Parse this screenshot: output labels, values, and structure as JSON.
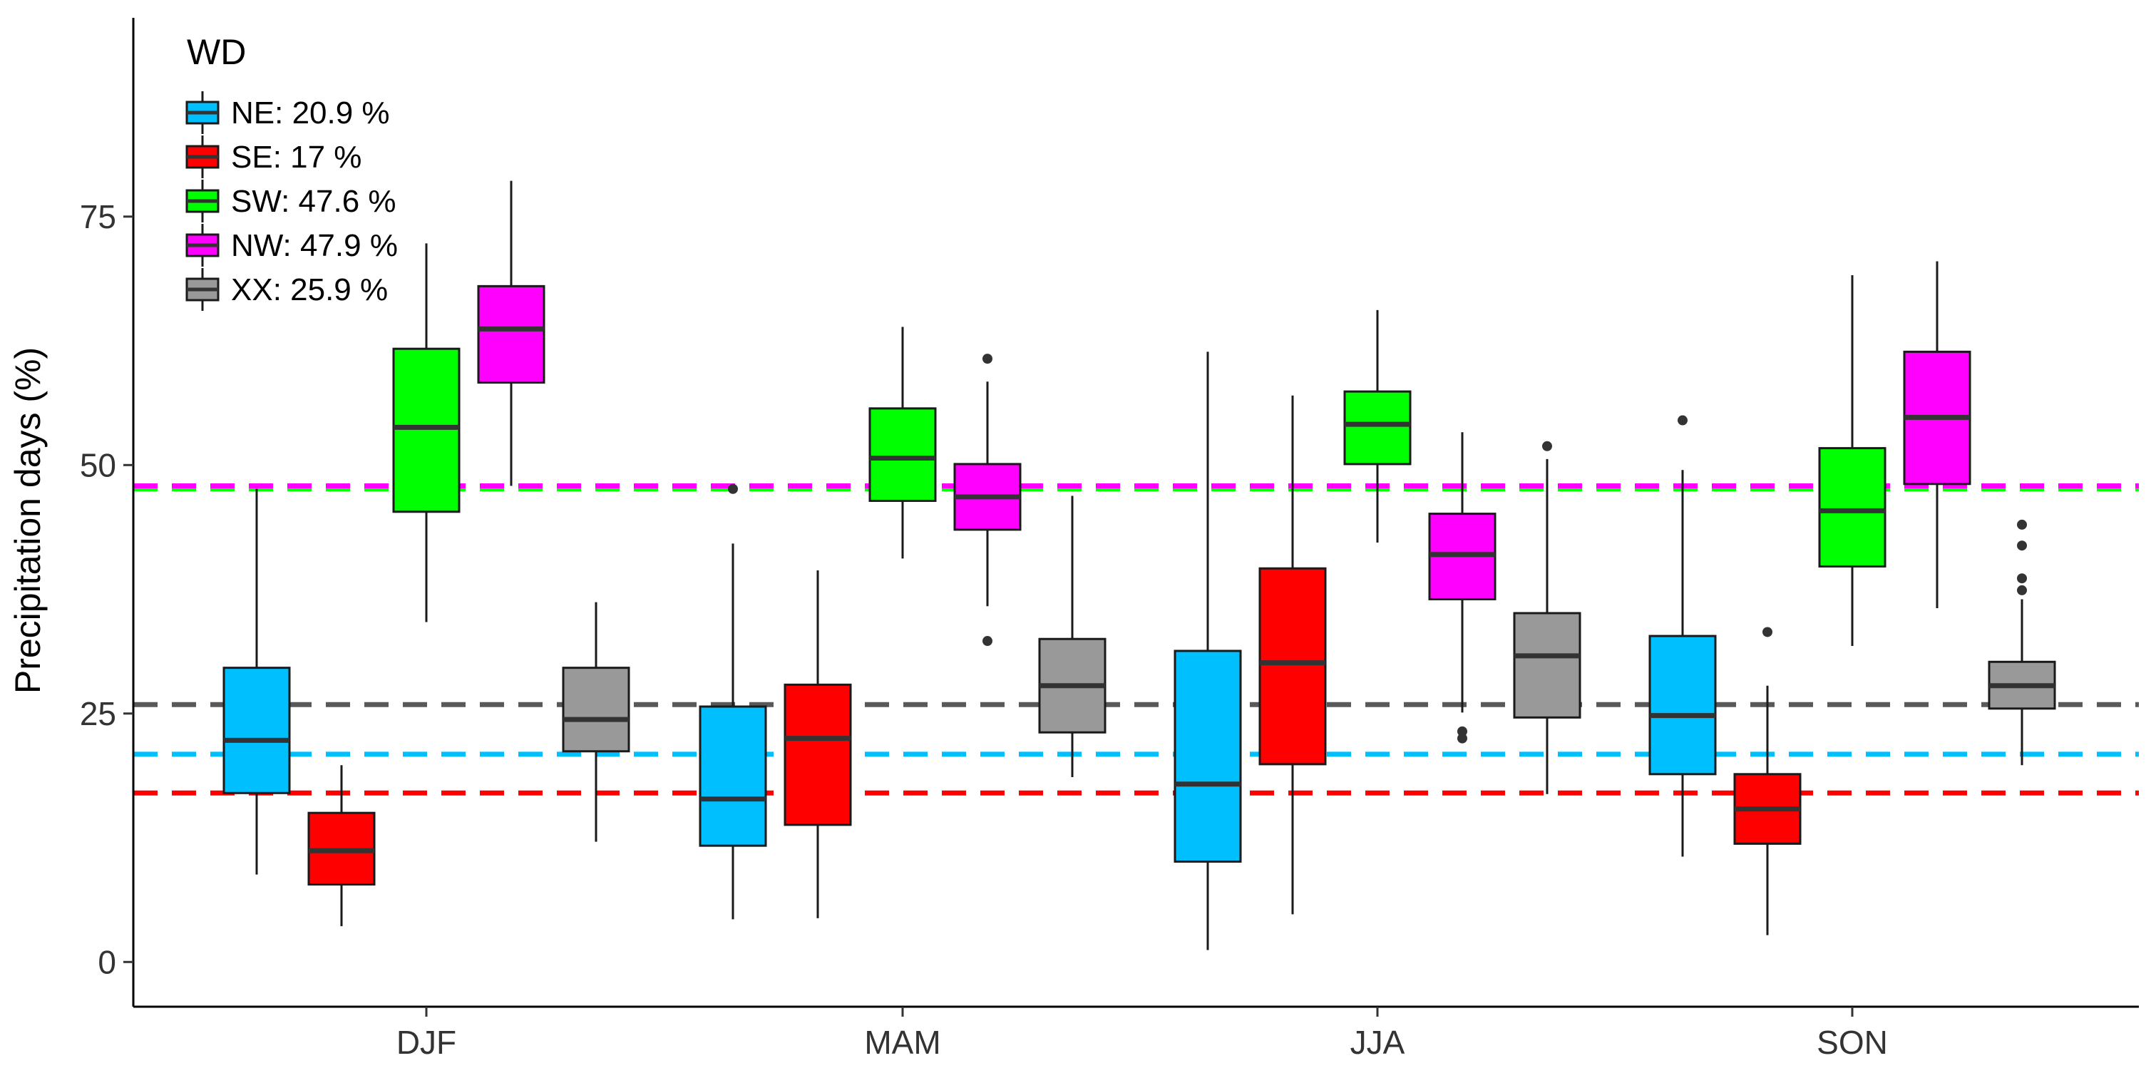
{
  "chart_data": {
    "type": "boxplot",
    "title": "",
    "xlabel": "",
    "ylabel": "Precipitation days (%)",
    "ylim": [
      -4.5,
      95
    ],
    "yticks": [
      0,
      25,
      50,
      75
    ],
    "categories": [
      "DJF",
      "MAM",
      "JJA",
      "SON"
    ],
    "legend": {
      "title": "WD",
      "position": "top-left",
      "entries": [
        "NE: 20.9 %",
        "SE: 17 %",
        "SW: 47.6 %",
        "NW: 47.9 %",
        "XX: 25.9 %"
      ]
    },
    "series": [
      {
        "name": "NE",
        "color": "#00BFFF",
        "reference_mean": 20.9,
        "boxes": [
          {
            "category": "DJF",
            "whisker_low": 8.8,
            "q1": 17.0,
            "median": 22.3,
            "q3": 29.6,
            "whisker_high": 47.6,
            "outliers": []
          },
          {
            "category": "MAM",
            "whisker_low": 4.3,
            "q1": 11.7,
            "median": 16.4,
            "q3": 25.7,
            "whisker_high": 42.1,
            "outliers": [
              47.6
            ]
          },
          {
            "category": "JJA",
            "whisker_low": 1.2,
            "q1": 10.1,
            "median": 17.9,
            "q3": 31.3,
            "whisker_high": 61.4,
            "outliers": []
          },
          {
            "category": "SON",
            "whisker_low": 10.6,
            "q1": 18.9,
            "median": 24.8,
            "q3": 32.8,
            "whisker_high": 49.5,
            "outliers": [
              54.5
            ]
          }
        ]
      },
      {
        "name": "SE",
        "color": "#FF0000",
        "reference_mean": 17.0,
        "boxes": [
          {
            "category": "DJF",
            "whisker_low": 3.6,
            "q1": 7.8,
            "median": 11.2,
            "q3": 15.0,
            "whisker_high": 19.8,
            "outliers": []
          },
          {
            "category": "MAM",
            "whisker_low": 4.4,
            "q1": 13.8,
            "median": 22.5,
            "q3": 27.9,
            "whisker_high": 39.4,
            "outliers": []
          },
          {
            "category": "JJA",
            "whisker_low": 4.8,
            "q1": 19.9,
            "median": 30.1,
            "q3": 39.6,
            "whisker_high": 57.0,
            "outliers": []
          },
          {
            "category": "SON",
            "whisker_low": 2.7,
            "q1": 11.9,
            "median": 15.4,
            "q3": 18.9,
            "whisker_high": 27.8,
            "outliers": [
              33.2
            ]
          }
        ]
      },
      {
        "name": "SW",
        "color": "#00FF00",
        "reference_mean": 47.6,
        "boxes": [
          {
            "category": "DJF",
            "whisker_low": 34.2,
            "q1": 45.3,
            "median": 53.8,
            "q3": 61.7,
            "whisker_high": 72.3,
            "outliers": []
          },
          {
            "category": "MAM",
            "whisker_low": 40.6,
            "q1": 46.4,
            "median": 50.7,
            "q3": 55.7,
            "whisker_high": 63.9,
            "outliers": []
          },
          {
            "category": "JJA",
            "whisker_low": 42.2,
            "q1": 50.1,
            "median": 54.1,
            "q3": 57.4,
            "whisker_high": 65.6,
            "outliers": []
          },
          {
            "category": "SON",
            "whisker_low": 31.8,
            "q1": 39.8,
            "median": 45.4,
            "q3": 51.7,
            "whisker_high": 69.1,
            "outliers": []
          }
        ]
      },
      {
        "name": "NW",
        "color": "#FF00FF",
        "reference_mean": 47.9,
        "boxes": [
          {
            "category": "DJF",
            "whisker_low": 47.9,
            "q1": 58.3,
            "median": 63.7,
            "q3": 68.0,
            "whisker_high": 78.6,
            "outliers": []
          },
          {
            "category": "MAM",
            "whisker_low": 35.8,
            "q1": 43.5,
            "median": 46.8,
            "q3": 50.1,
            "whisker_high": 58.4,
            "outliers": [
              60.7,
              32.3
            ]
          },
          {
            "category": "JJA",
            "whisker_low": 25.1,
            "q1": 36.5,
            "median": 41.0,
            "q3": 45.1,
            "whisker_high": 53.3,
            "outliers": [
              23.2,
              22.5
            ]
          },
          {
            "category": "SON",
            "whisker_low": 35.6,
            "q1": 48.1,
            "median": 54.8,
            "q3": 61.4,
            "whisker_high": 70.5,
            "outliers": []
          }
        ]
      },
      {
        "name": "XX",
        "color": "#999999",
        "reference_mean": 25.9,
        "boxes": [
          {
            "category": "DJF",
            "whisker_low": 12.1,
            "q1": 21.2,
            "median": 24.4,
            "q3": 29.6,
            "whisker_high": 36.2,
            "outliers": []
          },
          {
            "category": "MAM",
            "whisker_low": 18.6,
            "q1": 23.1,
            "median": 27.8,
            "q3": 32.5,
            "whisker_high": 46.9,
            "outliers": []
          },
          {
            "category": "JJA",
            "whisker_low": 16.9,
            "q1": 24.6,
            "median": 30.8,
            "q3": 35.1,
            "whisker_high": 50.6,
            "outliers": [
              51.9
            ]
          },
          {
            "category": "SON",
            "whisker_low": 19.8,
            "q1": 25.5,
            "median": 27.8,
            "q3": 30.2,
            "whisker_high": 36.5,
            "outliers": [
              37.4,
              38.6,
              41.9,
              44.0
            ]
          }
        ]
      }
    ]
  }
}
